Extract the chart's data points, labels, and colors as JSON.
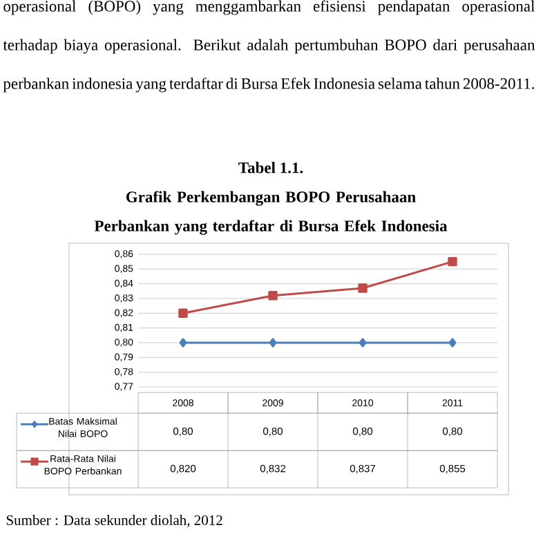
{
  "chart_data": {
    "type": "line",
    "title": "Tabel 1.1.",
    "subtitle": "Grafik Perkembangan BOPO Perusahaan Perbankan yang terdaftar di Bursa Efek Indonesia",
    "annotations": [
      "operasional (BOPO) yang menggambarkan efisiensi pendapatan operasional terhadap biaya operasional. Berikut adalah pertumbuhan BOPO dari perusahaan perbankan indonesia yang terdaftar di Bursa Efek Indonesia selama tahun 2008-2011.",
      "Sumber : Data sekunder diolah, 2012"
    ],
    "categories": [
      "2008",
      "2009",
      "2010",
      "2011"
    ],
    "series": [
      {
        "name": "Batas Maksimal Nilai BOPO",
        "color": "#4a7ebb",
        "marker": "diamond",
        "values": [
          0.8,
          0.8,
          0.8,
          0.8
        ],
        "value_labels": [
          "0,80",
          "0,80",
          "0,80",
          "0,80"
        ]
      },
      {
        "name": "Rata-Rata Nilai BOPO Perbankan",
        "color": "#be4b48",
        "marker": "square",
        "values": [
          0.82,
          0.832,
          0.837,
          0.855
        ],
        "value_labels": [
          "0,820",
          "0,832",
          "0,837",
          "0,855"
        ]
      }
    ],
    "ylim": [
      0.77,
      0.86
    ],
    "yticks": [
      {
        "value": 0.77,
        "label": "0,77"
      },
      {
        "value": 0.78,
        "label": "0,78"
      },
      {
        "value": 0.79,
        "label": "0,79"
      },
      {
        "value": 0.8,
        "label": "0,80"
      },
      {
        "value": 0.81,
        "label": "0,81"
      },
      {
        "value": 0.82,
        "label": "0,82"
      },
      {
        "value": 0.83,
        "label": "0,83"
      },
      {
        "value": 0.84,
        "label": "0,84"
      },
      {
        "value": 0.85,
        "label": "0,85"
      },
      {
        "value": 0.86,
        "label": "0,86"
      }
    ],
    "grid": "y",
    "legend": "bottom"
  }
}
